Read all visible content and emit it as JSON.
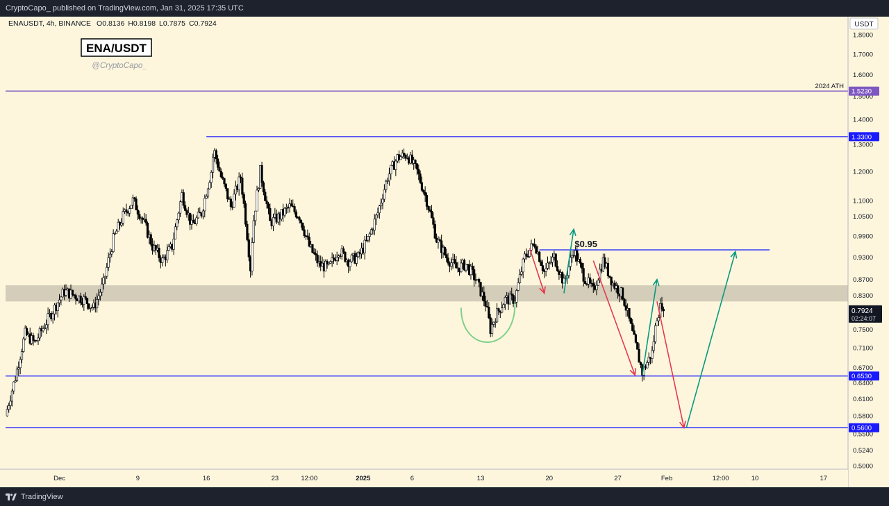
{
  "header": {
    "published": "CryptoCapo_ published on TradingView.com, Jan 31, 2025 17:35 UTC"
  },
  "footer": {
    "brand": "TradingView"
  },
  "chart_data": {
    "type": "candlestick",
    "symbol_line": {
      "symbol": "ENAUSDT, 4h, BINANCE",
      "open": "O0.8136",
      "high": "H0.8198",
      "low": "L0.7875",
      "close": "C0.7924"
    },
    "title": "ENA/USDT",
    "author": "@CryptoCapo_",
    "currency": "USDT",
    "y_scale": "log",
    "ylim": [
      0.495,
      1.9
    ],
    "y_ticks": [
      "1.8000",
      "1.7000",
      "1.6000",
      "1.5000",
      "1.4000",
      "1.3000",
      "1.2000",
      "1.1000",
      "1.0500",
      "0.9900",
      "0.9300",
      "0.8700",
      "0.8300",
      "0.7500",
      "0.7100",
      "0.6700",
      "0.6400",
      "0.6100",
      "0.5800",
      "0.5500",
      "0.5240",
      "0.5000"
    ],
    "x_ticks": [
      {
        "label": "Dec",
        "date": "2024-12-01T00:00"
      },
      {
        "label": "9",
        "date": "2024-12-09T00:00"
      },
      {
        "label": "16",
        "date": "2024-12-16T00:00"
      },
      {
        "label": "23",
        "date": "2024-12-23T00:00"
      },
      {
        "label": "12:00",
        "date": "2024-12-26T12:00"
      },
      {
        "label": "2025",
        "date": "2025-01-01T00:00",
        "bold": true
      },
      {
        "label": "6",
        "date": "2025-01-06T00:00"
      },
      {
        "label": "13",
        "date": "2025-01-13T00:00"
      },
      {
        "label": "20",
        "date": "2025-01-20T00:00"
      },
      {
        "label": "27",
        "date": "2025-01-27T00:00"
      },
      {
        "label": "Feb",
        "date": "2025-02-01T00:00"
      },
      {
        "label": "12:00",
        "date": "2025-02-06T12:00"
      },
      {
        "label": "10",
        "date": "2025-02-10T00:00"
      },
      {
        "label": "17",
        "date": "2025-02-17T00:00"
      }
    ],
    "x_range": [
      "2024-11-25T12:00",
      "2025-02-19T12:00"
    ],
    "price_path": [
      [
        "2024-11-25T12:00",
        0.58
      ],
      [
        "2024-11-26T12:00",
        0.65
      ],
      [
        "2024-11-27T12:00",
        0.74
      ],
      [
        "2024-11-28T12:00",
        0.72
      ],
      [
        "2024-11-29T12:00",
        0.76
      ],
      [
        "2024-11-30T12:00",
        0.8
      ],
      [
        "2024-12-01T12:00",
        0.84
      ],
      [
        "2024-12-02T12:00",
        0.83
      ],
      [
        "2024-12-03T12:00",
        0.82
      ],
      [
        "2024-12-04T12:00",
        0.8
      ],
      [
        "2024-12-05T12:00",
        0.86
      ],
      [
        "2024-12-06T12:00",
        0.98
      ],
      [
        "2024-12-07T12:00",
        1.05
      ],
      [
        "2024-12-08T12:00",
        1.1
      ],
      [
        "2024-12-09T12:00",
        1.04
      ],
      [
        "2024-12-10T12:00",
        0.96
      ],
      [
        "2024-12-11T12:00",
        0.92
      ],
      [
        "2024-12-12T12:00",
        0.96
      ],
      [
        "2024-12-13T12:00",
        1.12
      ],
      [
        "2024-12-14T12:00",
        1.02
      ],
      [
        "2024-12-15T12:00",
        1.06
      ],
      [
        "2024-12-16T12:00",
        1.2
      ],
      [
        "2024-12-16T18:00",
        1.28
      ],
      [
        "2024-12-17T12:00",
        1.18
      ],
      [
        "2024-12-18T12:00",
        1.08
      ],
      [
        "2024-12-19T12:00",
        1.18
      ],
      [
        "2024-12-20T12:00",
        0.9
      ],
      [
        "2024-12-20T18:00",
        1.02
      ],
      [
        "2024-12-21T12:00",
        1.2
      ],
      [
        "2024-12-22T12:00",
        1.03
      ],
      [
        "2024-12-23T12:00",
        1.05
      ],
      [
        "2024-12-24T12:00",
        1.08
      ],
      [
        "2024-12-25T12:00",
        1.05
      ],
      [
        "2024-12-26T12:00",
        0.96
      ],
      [
        "2024-12-27T12:00",
        0.91
      ],
      [
        "2024-12-28T12:00",
        0.9
      ],
      [
        "2024-12-29T12:00",
        0.95
      ],
      [
        "2024-12-30T12:00",
        0.92
      ],
      [
        "2024-12-31T12:00",
        0.93
      ],
      [
        "2025-01-01T12:00",
        0.98
      ],
      [
        "2025-01-02T12:00",
        1.06
      ],
      [
        "2025-01-03T12:00",
        1.18
      ],
      [
        "2025-01-04T12:00",
        1.25
      ],
      [
        "2025-01-05T12:00",
        1.26
      ],
      [
        "2025-01-06T12:00",
        1.2
      ],
      [
        "2025-01-07T12:00",
        1.1
      ],
      [
        "2025-01-08T12:00",
        0.98
      ],
      [
        "2025-01-09T12:00",
        0.93
      ],
      [
        "2025-01-10T12:00",
        0.9
      ],
      [
        "2025-01-11T12:00",
        0.91
      ],
      [
        "2025-01-12T12:00",
        0.87
      ],
      [
        "2025-01-13T12:00",
        0.81
      ],
      [
        "2025-01-14T00:00",
        0.75
      ],
      [
        "2025-01-14T12:00",
        0.78
      ],
      [
        "2025-01-15T12:00",
        0.82
      ],
      [
        "2025-01-16T12:00",
        0.82
      ],
      [
        "2025-01-17T12:00",
        0.93
      ],
      [
        "2025-01-18T12:00",
        0.97
      ],
      [
        "2025-01-19T12:00",
        0.89
      ],
      [
        "2025-01-20T12:00",
        0.93
      ],
      [
        "2025-01-21T12:00",
        0.86
      ],
      [
        "2025-01-22T12:00",
        0.95
      ],
      [
        "2025-01-23T12:00",
        0.88
      ],
      [
        "2025-01-24T12:00",
        0.84
      ],
      [
        "2025-01-25T12:00",
        0.92
      ],
      [
        "2025-01-26T12:00",
        0.86
      ],
      [
        "2025-01-27T12:00",
        0.83
      ],
      [
        "2025-01-28T12:00",
        0.74
      ],
      [
        "2025-01-29T00:00",
        0.7
      ],
      [
        "2025-01-29T12:00",
        0.66
      ],
      [
        "2025-01-30T12:00",
        0.7
      ],
      [
        "2025-01-31T00:00",
        0.78
      ],
      [
        "2025-01-31T12:00",
        0.81
      ],
      [
        "2025-01-31T17:00",
        0.7924
      ]
    ],
    "price_levels": [
      {
        "price": 1.523,
        "label": "1.5230",
        "note": "2024 ATH",
        "color": "#7e57c2",
        "start": "2024-11-25T12:00"
      },
      {
        "price": 1.33,
        "label": "1.3300",
        "color": "#1a1aff",
        "start": "2024-12-16T00:00"
      },
      {
        "price": 0.653,
        "label": "0.6530",
        "color": "#1a1aff",
        "start": "2024-11-25T12:00"
      },
      {
        "price": 0.56,
        "label": "0.5600",
        "color": "#1a1aff",
        "start": "2024-11-25T12:00"
      }
    ],
    "target_line": {
      "price": 0.95,
      "label": "$0.95",
      "from": "2025-01-19T00:00",
      "to": "2025-02-11T12:00"
    },
    "zone": {
      "low": 0.815,
      "high": 0.855,
      "color": "#d4cdb9"
    },
    "current_price": {
      "price": 0.7924,
      "label": "0.7924",
      "countdown": "02:24:07"
    },
    "arrows": [
      {
        "color": "#e53950",
        "from": [
          "2025-01-18T00:00",
          0.955
        ],
        "to": [
          "2025-01-19T12:00",
          0.835
        ]
      },
      {
        "color": "#089981",
        "from": [
          "2025-01-21T12:00",
          0.835
        ],
        "to": [
          "2025-01-22T12:00",
          1.01
        ]
      },
      {
        "color": "#e53950",
        "from": [
          "2025-01-24T12:00",
          0.92
        ],
        "to": [
          "2025-01-28T18:00",
          0.655
        ]
      },
      {
        "color": "#089981",
        "from": [
          "2025-01-29T12:00",
          0.655
        ],
        "to": [
          "2025-01-31T00:00",
          0.87
        ]
      },
      {
        "color": "#e53950",
        "from": [
          "2025-01-31T00:00",
          0.815
        ],
        "to": [
          "2025-02-02T18:00",
          0.56
        ]
      },
      {
        "color": "#089981",
        "from": [
          "2025-02-03T00:00",
          0.56
        ],
        "to": [
          "2025-02-08T00:00",
          0.945
        ]
      }
    ],
    "curve": {
      "color": "#7ed08a",
      "from": [
        "2025-01-11T00:00",
        0.8
      ],
      "bottom": [
        "2025-01-14T12:00",
        0.725
      ],
      "to": [
        "2025-01-16T12:00",
        0.815
      ]
    }
  }
}
